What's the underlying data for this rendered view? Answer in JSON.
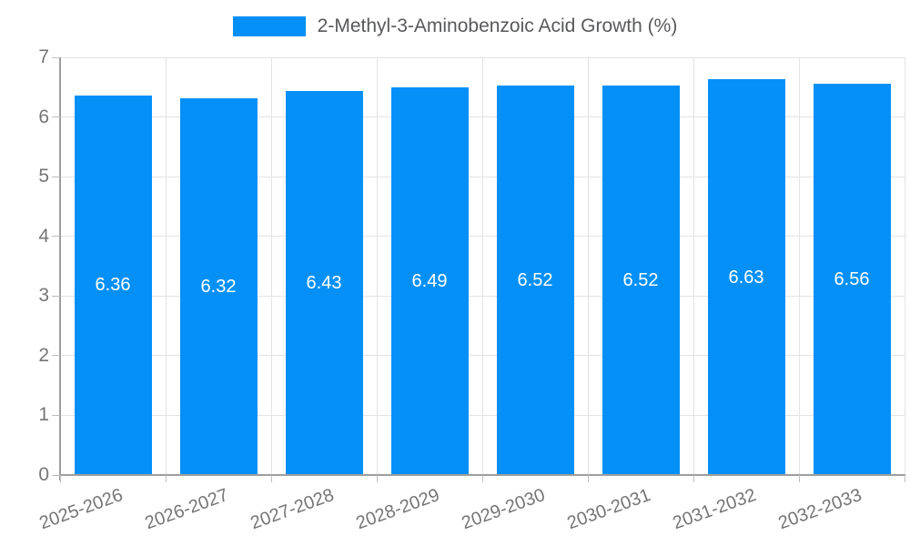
{
  "chart_data": {
    "type": "bar",
    "title": "",
    "legend": {
      "label": "2-Methyl-3-Aminobenzoic Acid Growth (%)",
      "position": "top"
    },
    "categories": [
      "2025-2026",
      "2026-2027",
      "2027-2028",
      "2028-2029",
      "2029-2030",
      "2030-2031",
      "2031-2032",
      "2032-2033"
    ],
    "values": [
      6.36,
      6.32,
      6.43,
      6.49,
      6.52,
      6.52,
      6.63,
      6.56
    ],
    "value_labels": [
      "6.36",
      "6.32",
      "6.43",
      "6.49",
      "6.52",
      "6.52",
      "6.63",
      "6.56"
    ],
    "xlabel": "",
    "ylabel": "",
    "ylim": [
      0,
      7
    ],
    "yticks": [
      0,
      1,
      2,
      3,
      4,
      5,
      6,
      7
    ],
    "grid": true,
    "colors": {
      "bar": "#0590F8",
      "grid": "#E3E3E3",
      "axis": "#9E9E9E",
      "tick": "#BDBDBD",
      "tick_label": "#757575",
      "legend_text": "#58595B",
      "value_label": "#FFFFFF",
      "background": "#FFFFFF"
    }
  }
}
